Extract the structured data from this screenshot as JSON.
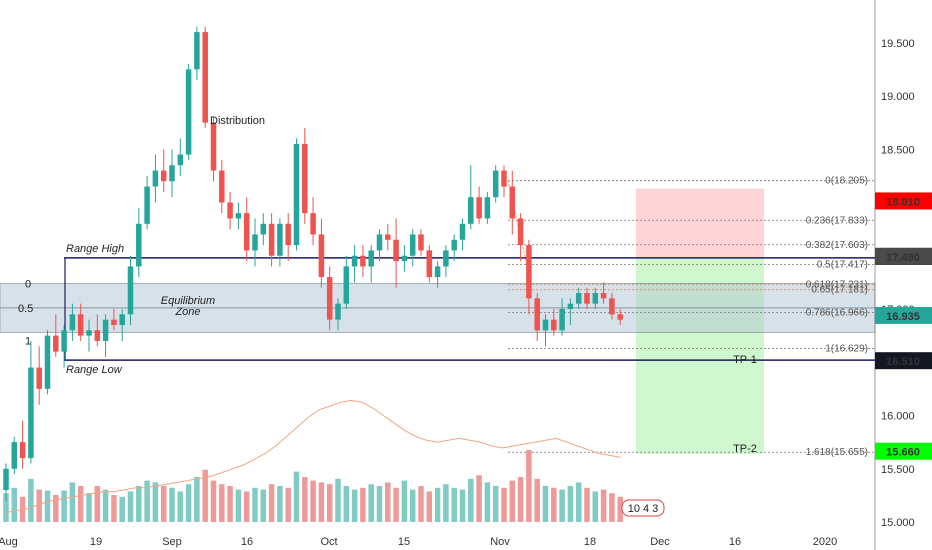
{
  "chart_data": {
    "type": "candlestick",
    "x_ticks": [
      "Aug",
      "19",
      "Sep",
      "16",
      "Oct",
      "15",
      "Nov",
      "18",
      "Dec",
      "16",
      "2020"
    ],
    "y_ticks": [
      "15.000",
      "15.500",
      "16.000",
      "16.500",
      "17.000",
      "17.500",
      "18.000",
      "18.500",
      "19.000",
      "19.500"
    ],
    "ylim": [
      14.95,
      19.95
    ],
    "colors": {
      "up": "#26a69a",
      "down": "#ef5350",
      "volume_up": "#80cbc4",
      "volume_down": "#ef9a9a",
      "volume_ma": "#f4a582"
    },
    "candles": [
      [
        15.3,
        15.55,
        15.2,
        15.5
      ],
      [
        15.5,
        15.8,
        15.45,
        15.75
      ],
      [
        15.75,
        15.95,
        15.5,
        15.6
      ],
      [
        15.6,
        16.7,
        15.55,
        16.45
      ],
      [
        16.45,
        16.65,
        16.1,
        16.25
      ],
      [
        16.25,
        16.8,
        16.2,
        16.75
      ],
      [
        16.75,
        16.95,
        16.55,
        16.6
      ],
      [
        16.6,
        16.85,
        16.45,
        16.8
      ],
      [
        16.8,
        17.05,
        16.7,
        16.95
      ],
      [
        16.95,
        17.05,
        16.7,
        16.75
      ],
      [
        16.75,
        16.9,
        16.6,
        16.8
      ],
      [
        16.8,
        16.95,
        16.65,
        16.7
      ],
      [
        16.7,
        16.95,
        16.55,
        16.9
      ],
      [
        16.9,
        17.0,
        16.8,
        16.85
      ],
      [
        16.85,
        17.0,
        16.7,
        16.95
      ],
      [
        16.95,
        17.5,
        16.85,
        17.4
      ],
      [
        17.4,
        17.95,
        17.3,
        17.8
      ],
      [
        17.8,
        18.25,
        17.75,
        18.15
      ],
      [
        18.15,
        18.45,
        18.0,
        18.3
      ],
      [
        18.3,
        18.5,
        18.1,
        18.2
      ],
      [
        18.2,
        18.5,
        18.05,
        18.35
      ],
      [
        18.35,
        18.6,
        18.25,
        18.45
      ],
      [
        18.45,
        19.3,
        18.4,
        19.25
      ],
      [
        19.25,
        19.65,
        19.15,
        19.6
      ],
      [
        19.6,
        19.65,
        18.7,
        18.75
      ],
      [
        18.75,
        18.8,
        18.2,
        18.3
      ],
      [
        18.3,
        18.4,
        17.9,
        18.0
      ],
      [
        18.0,
        18.1,
        17.75,
        17.85
      ],
      [
        17.85,
        18.0,
        17.75,
        17.9
      ],
      [
        17.9,
        18.05,
        17.45,
        17.55
      ],
      [
        17.55,
        17.85,
        17.4,
        17.7
      ],
      [
        17.7,
        17.9,
        17.6,
        17.8
      ],
      [
        17.8,
        17.9,
        17.4,
        17.5
      ],
      [
        17.5,
        17.85,
        17.4,
        17.8
      ],
      [
        17.8,
        17.9,
        17.45,
        17.6
      ],
      [
        17.6,
        18.6,
        17.55,
        18.55
      ],
      [
        18.55,
        18.7,
        17.8,
        17.9
      ],
      [
        17.9,
        18.05,
        17.6,
        17.7
      ],
      [
        17.7,
        17.85,
        17.2,
        17.3
      ],
      [
        17.3,
        17.4,
        16.8,
        16.9
      ],
      [
        16.9,
        17.1,
        16.8,
        17.05
      ],
      [
        17.05,
        17.5,
        17.0,
        17.4
      ],
      [
        17.4,
        17.6,
        17.25,
        17.5
      ],
      [
        17.5,
        17.6,
        17.3,
        17.4
      ],
      [
        17.4,
        17.6,
        17.25,
        17.55
      ],
      [
        17.55,
        17.75,
        17.45,
        17.7
      ],
      [
        17.7,
        17.8,
        17.55,
        17.65
      ],
      [
        17.65,
        17.85,
        17.2,
        17.45
      ],
      [
        17.45,
        17.6,
        17.35,
        17.5
      ],
      [
        17.5,
        17.75,
        17.4,
        17.7
      ],
      [
        17.7,
        17.75,
        17.5,
        17.55
      ],
      [
        17.55,
        17.6,
        17.25,
        17.3
      ],
      [
        17.3,
        17.45,
        17.2,
        17.4
      ],
      [
        17.4,
        17.6,
        17.3,
        17.55
      ],
      [
        17.55,
        17.7,
        17.45,
        17.65
      ],
      [
        17.65,
        17.85,
        17.55,
        17.8
      ],
      [
        17.8,
        18.35,
        17.75,
        18.05
      ],
      [
        18.05,
        18.15,
        17.8,
        17.85
      ],
      [
        17.85,
        18.1,
        17.8,
        18.05
      ],
      [
        18.05,
        18.35,
        18.0,
        18.3
      ],
      [
        18.3,
        18.35,
        18.05,
        18.15
      ],
      [
        18.15,
        18.3,
        17.7,
        17.85
      ],
      [
        17.85,
        17.9,
        17.45,
        17.6
      ],
      [
        17.6,
        17.65,
        16.95,
        17.1
      ],
      [
        17.1,
        17.15,
        16.7,
        16.8
      ],
      [
        16.8,
        16.95,
        16.65,
        16.9
      ],
      [
        16.9,
        17.0,
        16.75,
        16.8
      ],
      [
        16.8,
        17.1,
        16.75,
        17.0
      ],
      [
        17.0,
        17.1,
        16.85,
        17.05
      ],
      [
        17.05,
        17.2,
        17.0,
        17.15
      ],
      [
        17.15,
        17.2,
        17.0,
        17.05
      ],
      [
        17.05,
        17.2,
        17.0,
        17.15
      ],
      [
        17.15,
        17.25,
        17.05,
        17.1
      ],
      [
        17.1,
        17.15,
        16.9,
        16.95
      ],
      [
        16.95,
        17.0,
        16.85,
        16.9
      ]
    ],
    "volume": [
      32,
      38,
      28,
      48,
      36,
      35,
      30,
      35,
      44,
      40,
      32,
      40,
      36,
      30,
      28,
      34,
      40,
      46,
      44,
      40,
      38,
      34,
      42,
      50,
      58,
      46,
      42,
      40,
      36,
      34,
      38,
      36,
      42,
      40,
      38,
      56,
      50,
      46,
      44,
      42,
      48,
      40,
      36,
      38,
      42,
      40,
      44,
      38,
      46,
      36,
      40,
      34,
      38,
      42,
      38,
      36,
      48,
      52,
      44,
      40,
      38,
      46,
      50,
      80,
      48,
      40,
      38,
      36,
      40,
      44,
      38,
      34,
      36,
      32,
      28
    ],
    "volume_ma": [
      10,
      12,
      14,
      18,
      22,
      24,
      26,
      28,
      30,
      32,
      32,
      34,
      36,
      36,
      38,
      40,
      42,
      44,
      46,
      48,
      52,
      56,
      60,
      66,
      72,
      80,
      90,
      100,
      110,
      118,
      122,
      126,
      128,
      126,
      120,
      112,
      104,
      96,
      90,
      86,
      84,
      86,
      88,
      86,
      84,
      80,
      78,
      80,
      82,
      84,
      86,
      88,
      84,
      80,
      76,
      72,
      70,
      68
    ]
  },
  "annotations": {
    "distribution_label": "Distribution",
    "range_high_label": "Range High",
    "range_low_label": "Range Low",
    "equilibrium_label_1": "Equilibrium",
    "equilibrium_label_2": "Zone",
    "eq_level_0": "0",
    "eq_level_05": "0.5",
    "eq_level_1": "1",
    "tp1_label": "TP-1",
    "tp2_label": "TP-2",
    "symbol_badge": "10  4  3"
  },
  "fib_levels": [
    {
      "label": "0(18.205)",
      "price": 18.205
    },
    {
      "label": "0.236(17.833)",
      "price": 17.833
    },
    {
      "label": "0.382(17.603)",
      "price": 17.603
    },
    {
      "label": "0.5(17.417)",
      "price": 17.417
    },
    {
      "label": "0.618(17.231)",
      "price": 17.231
    },
    {
      "label": "0.65(17.181)",
      "price": 17.181
    },
    {
      "label": "0.786(16.966)",
      "price": 16.966
    },
    {
      "label": "1(16.629)",
      "price": 16.629
    },
    {
      "label": "1.618(15.655)",
      "price": 15.655
    }
  ],
  "price_badges": [
    {
      "label": "18.010",
      "price": 18.01,
      "color": "#ff0000",
      "text": "#ffffff"
    },
    {
      "label": "17.489",
      "price": 17.489,
      "color": "#131722",
      "text": "#ffffff"
    },
    {
      "label": "17.490",
      "price": 17.49,
      "color": "#4a4a4a",
      "text": "#ffffff"
    },
    {
      "label": "16.935",
      "price": 16.935,
      "color": "#26a69a",
      "text": "#ffffff"
    },
    {
      "label": "16.510",
      "price": 16.51,
      "color": "#131722",
      "text": "#ffffff"
    },
    {
      "label": "15.660",
      "price": 15.66,
      "color": "#00ff00",
      "text": "#000000"
    }
  ],
  "levels": {
    "range_high": 17.48,
    "range_low": 16.52,
    "eq_top": 17.24,
    "eq_mid": 17.01,
    "eq_bottom": 16.78,
    "risk_top": 18.13,
    "entry": 17.48,
    "tp1": 16.55,
    "tp2": 15.64
  }
}
